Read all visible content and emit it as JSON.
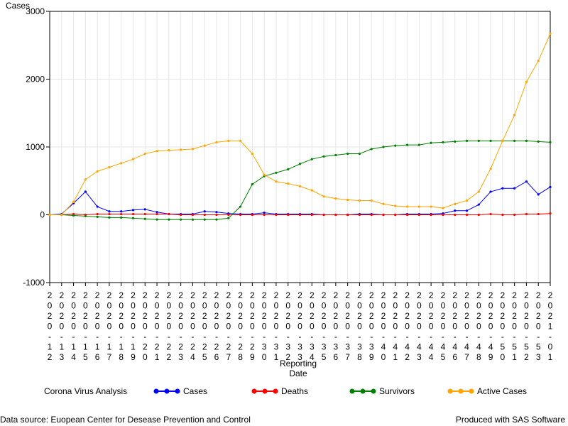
{
  "chart_data": {
    "type": "line",
    "ylabel": "Cases",
    "xlabel_line1": "Reporting",
    "xlabel_line2": "Date",
    "ylim": [
      -1000,
      3000
    ],
    "yticks": [
      -1000,
      0,
      1000,
      2000,
      3000
    ],
    "grid": true,
    "x": [
      "2020-12",
      "2020-13",
      "2020-14",
      "2020-15",
      "2020-16",
      "2020-17",
      "2020-18",
      "2020-19",
      "2020-20",
      "2020-21",
      "2020-22",
      "2020-23",
      "2020-24",
      "2020-25",
      "2020-26",
      "2020-27",
      "2020-28",
      "2020-29",
      "2020-30",
      "2020-31",
      "2020-32",
      "2020-33",
      "2020-34",
      "2020-35",
      "2020-36",
      "2020-37",
      "2020-38",
      "2020-39",
      "2020-40",
      "2020-41",
      "2020-42",
      "2020-43",
      "2020-44",
      "2020-45",
      "2020-46",
      "2020-47",
      "2020-48",
      "2020-49",
      "2020-50",
      "2020-51",
      "2020-52",
      "2020-53",
      "2021-01"
    ],
    "series": [
      {
        "name": "Cases",
        "color": "#0000ff",
        "values": [
          0,
          10,
          170,
          340,
          120,
          50,
          50,
          70,
          80,
          40,
          10,
          10,
          10,
          50,
          40,
          20,
          10,
          10,
          30,
          10,
          10,
          10,
          10,
          0,
          0,
          0,
          10,
          10,
          0,
          0,
          10,
          10,
          10,
          20,
          60,
          60,
          150,
          340,
          390,
          390,
          490,
          300,
          410
        ]
      },
      {
        "name": "Deaths",
        "color": "#ff0000",
        "values": [
          0,
          0,
          10,
          0,
          10,
          10,
          10,
          10,
          10,
          10,
          10,
          0,
          0,
          0,
          0,
          0,
          0,
          0,
          0,
          0,
          0,
          0,
          0,
          0,
          0,
          0,
          0,
          0,
          0,
          0,
          0,
          0,
          0,
          0,
          0,
          0,
          0,
          10,
          0,
          0,
          10,
          10,
          20
        ]
      },
      {
        "name": "Survivors",
        "color": "#008000",
        "values": [
          0,
          0,
          -10,
          -20,
          -30,
          -40,
          -40,
          -50,
          -60,
          -70,
          -70,
          -70,
          -70,
          -70,
          -70,
          -50,
          120,
          450,
          570,
          620,
          670,
          750,
          820,
          860,
          880,
          900,
          900,
          970,
          1000,
          1020,
          1030,
          1030,
          1060,
          1070,
          1080,
          1090,
          1090,
          1090,
          1090,
          1090,
          1090,
          1080,
          1070
        ]
      },
      {
        "name": "Active Cases",
        "color": "#ffa500",
        "values": [
          0,
          0,
          190,
          520,
          640,
          700,
          760,
          820,
          900,
          940,
          950,
          960,
          970,
          1020,
          1070,
          1090,
          1090,
          900,
          590,
          490,
          460,
          420,
          360,
          270,
          240,
          220,
          210,
          210,
          160,
          130,
          120,
          120,
          120,
          100,
          160,
          210,
          340,
          680,
          1090,
          1470,
          1960,
          2270,
          2670
        ]
      }
    ]
  },
  "legend": {
    "title": "Corona Virus Analysis"
  },
  "footer": {
    "left": "Data source: Euopean Center for Desease Prevention and Control",
    "right": "Produced with SAS Software"
  }
}
